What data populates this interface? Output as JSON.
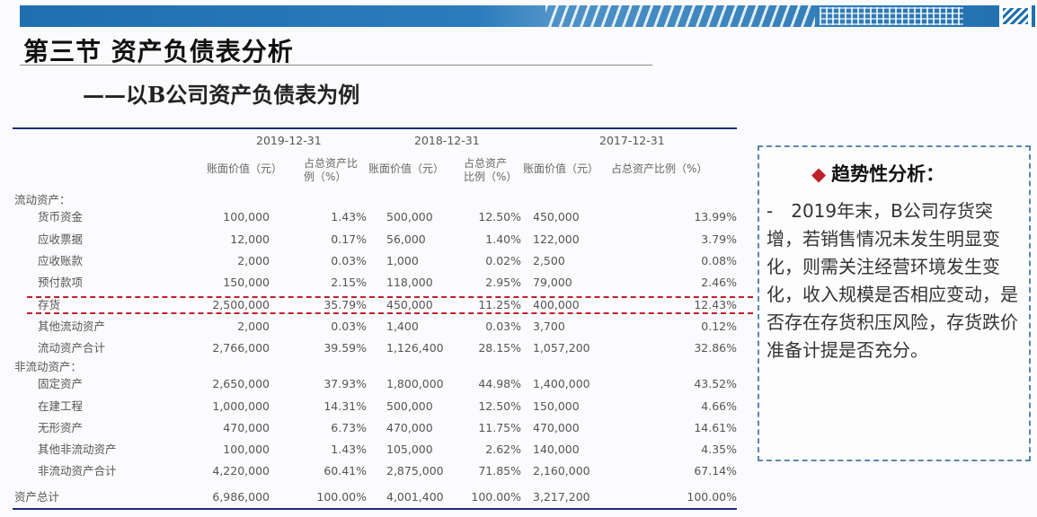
{
  "slide": {
    "title": "第三节 资产负债表分析",
    "subtitle": "——以B公司资产负债表为例"
  },
  "table": {
    "dates": [
      "2019-12-31",
      "2018-12-31",
      "2017-12-31"
    ],
    "col_headers": [
      "账面价值（元）",
      "占总资产比\n例（%）",
      "账面价值（元）",
      "占总资产\n比例（%）",
      "账面价值（元）",
      "占总资产比例（%）"
    ],
    "sections": {
      "current": "流动资产：",
      "noncurrent": "非流动资产："
    },
    "rows": [
      {
        "name": "货币资金",
        "v": [
          "100,000",
          "1.43%",
          "500,000",
          "12.50%",
          "450,000",
          "13.99%"
        ]
      },
      {
        "name": "应收票据",
        "v": [
          "12,000",
          "0.17%",
          "56,000",
          "1.40%",
          "122,000",
          "3.79%"
        ]
      },
      {
        "name": "应收账款",
        "v": [
          "2,000",
          "0.03%",
          "1,000",
          "0.02%",
          "2,500",
          "0.08%"
        ]
      },
      {
        "name": "预付款项",
        "v": [
          "150,000",
          "2.15%",
          "118,000",
          "2.95%",
          "79,000",
          "2.46%"
        ]
      },
      {
        "name": "存货",
        "v": [
          "2,500,000",
          "35.79%",
          "450,000",
          "11.25%",
          "400,000",
          "12.43%"
        ]
      },
      {
        "name": "其他流动资产",
        "v": [
          "2,000",
          "0.03%",
          "1,400",
          "0.03%",
          "3,700",
          "0.12%"
        ]
      },
      {
        "name": "流动资产合计",
        "v": [
          "2,766,000",
          "39.59%",
          "1,126,400",
          "28.15%",
          "1,057,200",
          "32.86%"
        ]
      },
      {
        "name": "固定资产",
        "v": [
          "2,650,000",
          "37.93%",
          "1,800,000",
          "44.98%",
          "1,400,000",
          "43.52%"
        ]
      },
      {
        "name": "在建工程",
        "v": [
          "1,000,000",
          "14.31%",
          "500,000",
          "12.50%",
          "150,000",
          "4.66%"
        ]
      },
      {
        "name": "无形资产",
        "v": [
          "470,000",
          "6.73%",
          "470,000",
          "11.75%",
          "470,000",
          "14.61%"
        ]
      },
      {
        "name": "其他非流动资产",
        "v": [
          "100,000",
          "1.43%",
          "105,000",
          "2.62%",
          "140,000",
          "4.35%"
        ]
      },
      {
        "name": "非流动资产合计",
        "v": [
          "4,220,000",
          "60.41%",
          "2,875,000",
          "71.85%",
          "2,160,000",
          "67.14%"
        ]
      },
      {
        "name": "资产总计",
        "v": [
          "6,986,000",
          "100.00%",
          "4,001,400",
          "100.00%",
          "3,217,200",
          "100.00%"
        ]
      }
    ]
  },
  "panel": {
    "title": "趋势性分析：",
    "body": "-　2019年末，B公司存货突增，若销售情况未发生明显变化，则需关注经营环境发生变化，收入规模是否相应变动，是否存在存货积压风险，存货跌价准备计提是否充分。"
  },
  "colors": {
    "banner": "#1f6fae",
    "table_rule": "#1e2a78",
    "highlight": "#c0202a",
    "panel_border": "#5b86b0"
  }
}
